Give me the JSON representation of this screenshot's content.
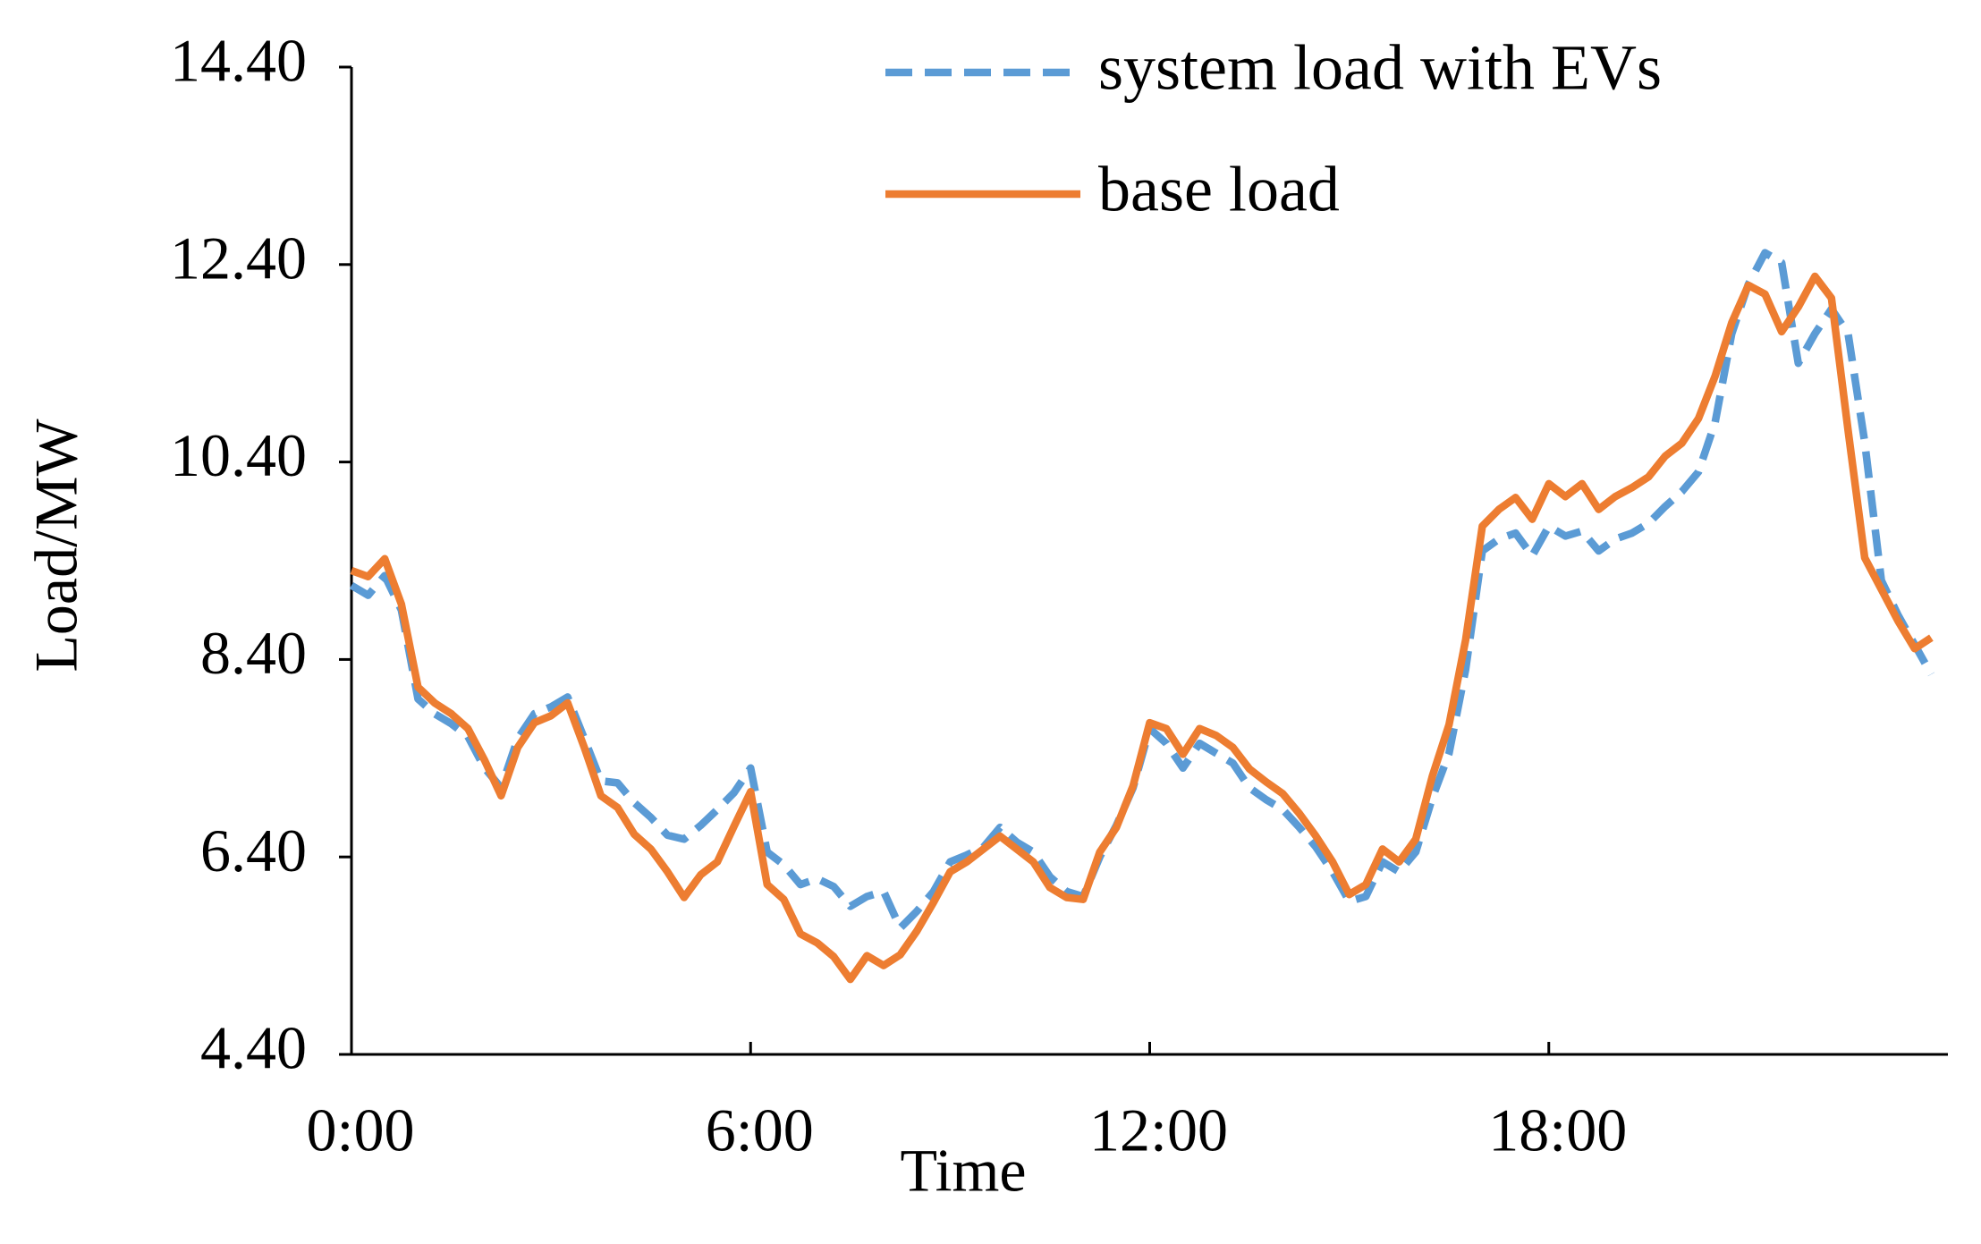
{
  "chart_data": {
    "type": "line",
    "xlabel": "Time",
    "ylabel": "Load/MW",
    "x": [
      0,
      0.25,
      0.5,
      0.75,
      1,
      1.25,
      1.5,
      1.75,
      2,
      2.25,
      2.5,
      2.75,
      3,
      3.25,
      3.5,
      3.75,
      4,
      4.25,
      4.5,
      4.75,
      5,
      5.25,
      5.5,
      5.75,
      6,
      6.25,
      6.5,
      6.75,
      7,
      7.25,
      7.5,
      7.75,
      8,
      8.25,
      8.5,
      8.75,
      9,
      9.25,
      9.5,
      9.75,
      10,
      10.25,
      10.5,
      10.75,
      11,
      11.25,
      11.5,
      11.75,
      12,
      12.25,
      12.5,
      12.75,
      13,
      13.25,
      13.5,
      13.75,
      14,
      14.25,
      14.5,
      14.75,
      15,
      15.25,
      15.5,
      15.75,
      16,
      16.25,
      16.5,
      16.75,
      17,
      17.25,
      17.5,
      17.75,
      18,
      18.25,
      18.5,
      18.75,
      19,
      19.25,
      19.5,
      19.75,
      20,
      20.25,
      20.5,
      20.75,
      21,
      21.25,
      21.5,
      21.75,
      22,
      22.25,
      22.5,
      22.75,
      23,
      23.25,
      23.5,
      23.75
    ],
    "series": [
      {
        "name": "system load with EVs",
        "color": "#5b9bd5",
        "dash": true,
        "values": [
          9.15,
          9.05,
          9.25,
          8.9,
          8.0,
          7.85,
          7.75,
          7.62,
          7.3,
          7.1,
          7.6,
          7.85,
          7.92,
          8.02,
          7.6,
          7.17,
          7.15,
          6.95,
          6.8,
          6.62,
          6.58,
          6.72,
          6.88,
          7.05,
          7.3,
          6.45,
          6.32,
          6.12,
          6.18,
          6.1,
          5.9,
          6.0,
          6.05,
          5.68,
          5.85,
          6.05,
          6.35,
          6.42,
          6.5,
          6.7,
          6.55,
          6.45,
          6.2,
          6.05,
          6.0,
          6.4,
          6.72,
          7.1,
          7.7,
          7.55,
          7.3,
          7.55,
          7.45,
          7.35,
          7.1,
          6.98,
          6.88,
          6.7,
          6.5,
          6.25,
          5.95,
          6.0,
          6.35,
          6.25,
          6.45,
          7.0,
          7.45,
          8.3,
          9.5,
          9.62,
          9.68,
          9.45,
          9.75,
          9.65,
          9.7,
          9.5,
          9.62,
          9.68,
          9.78,
          9.95,
          10.1,
          10.3,
          10.8,
          11.7,
          12.2,
          12.52,
          12.42,
          11.4,
          11.7,
          11.95,
          11.7,
          10.6,
          9.2,
          8.85,
          8.55,
          8.25
        ]
      },
      {
        "name": "base load",
        "color": "#ed7d31",
        "dash": false,
        "values": [
          9.3,
          9.24,
          9.42,
          8.96,
          8.12,
          7.96,
          7.85,
          7.7,
          7.38,
          7.02,
          7.51,
          7.76,
          7.83,
          7.96,
          7.51,
          7.02,
          6.9,
          6.63,
          6.48,
          6.25,
          5.99,
          6.22,
          6.35,
          6.71,
          7.06,
          6.12,
          5.97,
          5.62,
          5.53,
          5.39,
          5.16,
          5.4,
          5.3,
          5.41,
          5.65,
          5.94,
          6.25,
          6.35,
          6.48,
          6.61,
          6.48,
          6.35,
          6.09,
          5.99,
          5.97,
          6.45,
          6.7,
          7.12,
          7.76,
          7.7,
          7.44,
          7.7,
          7.63,
          7.51,
          7.29,
          7.16,
          7.04,
          6.84,
          6.61,
          6.35,
          6.02,
          6.12,
          6.48,
          6.35,
          6.58,
          7.22,
          7.74,
          8.6,
          9.75,
          9.92,
          10.04,
          9.82,
          10.18,
          10.05,
          10.18,
          9.92,
          10.05,
          10.14,
          10.25,
          10.46,
          10.59,
          10.84,
          11.27,
          11.81,
          12.19,
          12.1,
          11.72,
          11.97,
          12.28,
          12.06,
          10.72,
          9.43,
          9.11,
          8.79,
          8.51,
          8.62
        ]
      }
    ],
    "xlim": [
      0,
      24
    ],
    "xticks": [
      {
        "value": 0,
        "label": "0:00"
      },
      {
        "value": 6,
        "label": "6:00"
      },
      {
        "value": 12,
        "label": "12:00"
      },
      {
        "value": 18,
        "label": "18:00"
      }
    ],
    "ylim": [
      4.4,
      14.4
    ],
    "yticks": [
      {
        "value": 4.4,
        "label": "4.40"
      },
      {
        "value": 6.4,
        "label": "6.40"
      },
      {
        "value": 8.4,
        "label": "8.40"
      },
      {
        "value": 10.4,
        "label": "10.40"
      },
      {
        "value": 12.4,
        "label": "12.40"
      },
      {
        "value": 14.4,
        "label": "14.40"
      }
    ],
    "grid": false,
    "legend": "top-right"
  }
}
